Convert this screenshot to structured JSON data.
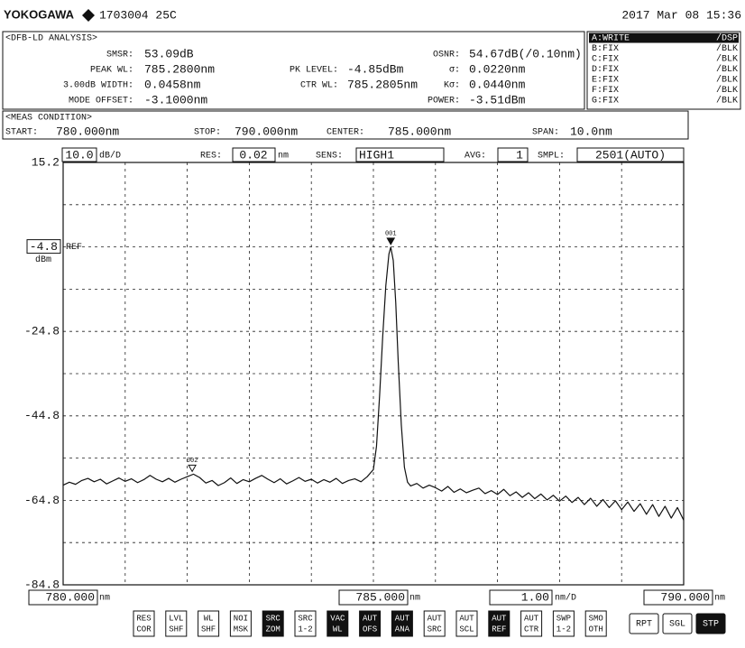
{
  "header": {
    "brand": "YOKOGAWA",
    "id": "1703004 25C",
    "datetime": "2017 Mar 08 15:36"
  },
  "analysis": {
    "title": "<DFB-LD ANALYSIS>",
    "columns": [
      [
        {
          "label": "SMSR:",
          "value": "53.09dB"
        },
        {
          "label": "PEAK WL:",
          "value": "785.2800nm"
        },
        {
          "label": "3.00dB WIDTH:",
          "value": "0.0458nm"
        },
        {
          "label": "MODE OFFSET:",
          "value": "-3.1000nm"
        }
      ],
      [
        {
          "label": "PK LEVEL:",
          "value": "-4.85dBm"
        },
        {
          "label": "CTR WL:",
          "value": "785.2805nm"
        }
      ],
      [
        {
          "label": "OSNR:",
          "value": "54.67dB(/0.10nm)"
        },
        {
          "label": "σ:",
          "value": "0.0220nm"
        },
        {
          "label": "Kσ:",
          "value": "0.0440nm"
        },
        {
          "label": "POWER:",
          "value": "-3.51dBm"
        }
      ]
    ]
  },
  "traces": [
    {
      "name": "A:WRITE",
      "mode": "/DSP",
      "active": true
    },
    {
      "name": "B:FIX",
      "mode": "/BLK",
      "active": false
    },
    {
      "name": "C:FIX",
      "mode": "/BLK",
      "active": false
    },
    {
      "name": "D:FIX",
      "mode": "/BLK",
      "active": false
    },
    {
      "name": "E:FIX",
      "mode": "/BLK",
      "active": false
    },
    {
      "name": "F:FIX",
      "mode": "/BLK",
      "active": false
    },
    {
      "name": "G:FIX",
      "mode": "/BLK",
      "active": false
    }
  ],
  "condition": {
    "title": "<MEAS CONDITION>",
    "items": [
      {
        "label": "START:",
        "value": "780.000nm"
      },
      {
        "label": "STOP:",
        "value": "790.000nm"
      },
      {
        "label": "CENTER:",
        "value": "785.000nm"
      },
      {
        "label": "SPAN:",
        "value": "10.0nm"
      }
    ]
  },
  "settings": {
    "scale": "10.0",
    "scale_unit": "dB/D",
    "res_label": "RES:",
    "res": "0.02",
    "res_unit": "nm",
    "sens_label": "SENS:",
    "sens": "HIGH1",
    "avg_label": "AVG:",
    "avg": "1",
    "smpl_label": "SMPL:",
    "smpl": "2501(AUTO)"
  },
  "chart_data": {
    "type": "line",
    "xlim": [
      780,
      790
    ],
    "ylim": [
      -84.8,
      15.2
    ],
    "xgrid": [
      780,
      781,
      782,
      783,
      784,
      785,
      786,
      787,
      788,
      789,
      790
    ],
    "ygrid": [
      15.2,
      5.2,
      -4.8,
      -14.8,
      -24.8,
      -34.8,
      -44.8,
      -54.8,
      -64.8,
      -74.8,
      -84.8
    ],
    "yticks": [
      15.2,
      -24.8,
      -44.8,
      -64.8,
      -84.8
    ],
    "xticks": [
      {
        "value": 780,
        "label": "780.000"
      },
      {
        "value": 785,
        "label": "785.000"
      },
      {
        "value": 790,
        "label": "790.000"
      }
    ],
    "x_unit": "nm",
    "x_per_div": "1.00",
    "x_per_div_unit": "nm/D",
    "ref_level": -4.8,
    "ref_label": "REF",
    "ref_unit": "dBm",
    "grid": true,
    "series": [
      {
        "name": "A",
        "color": "#111111",
        "x": [
          780.0,
          780.1,
          780.2,
          780.3,
          780.4,
          780.5,
          780.6,
          780.7,
          780.8,
          780.9,
          781.0,
          781.1,
          781.2,
          781.3,
          781.4,
          781.5,
          781.6,
          781.7,
          781.8,
          781.9,
          782.0,
          782.1,
          782.2,
          782.3,
          782.4,
          782.5,
          782.6,
          782.7,
          782.8,
          782.9,
          783.0,
          783.1,
          783.2,
          783.3,
          783.4,
          783.5,
          783.6,
          783.7,
          783.8,
          783.9,
          784.0,
          784.1,
          784.2,
          784.3,
          784.4,
          784.5,
          784.6,
          784.7,
          784.8,
          784.9,
          785.0,
          785.05,
          785.1,
          785.15,
          785.2,
          785.25,
          785.28,
          785.32,
          785.36,
          785.4,
          785.45,
          785.5,
          785.55,
          785.6,
          785.7,
          785.8,
          785.9,
          786.0,
          786.1,
          786.2,
          786.3,
          786.4,
          786.5,
          786.6,
          786.7,
          786.8,
          786.9,
          787.0,
          787.1,
          787.2,
          787.3,
          787.4,
          787.5,
          787.6,
          787.7,
          787.8,
          787.9,
          788.0,
          788.1,
          788.2,
          788.3,
          788.4,
          788.5,
          788.6,
          788.7,
          788.8,
          788.9,
          789.0,
          789.1,
          789.2,
          789.3,
          789.4,
          789.5,
          789.6,
          789.7,
          789.8,
          789.9,
          790.0
        ],
        "values": [
          -61.2,
          -60.5,
          -61.0,
          -60.1,
          -59.6,
          -60.4,
          -59.8,
          -60.9,
          -60.2,
          -59.5,
          -60.3,
          -59.7,
          -60.6,
          -59.9,
          -58.9,
          -59.8,
          -60.4,
          -59.6,
          -60.5,
          -59.8,
          -59.2,
          -58.6,
          -59.4,
          -60.7,
          -60.1,
          -61.3,
          -60.6,
          -59.5,
          -60.8,
          -59.9,
          -60.4,
          -59.6,
          -58.9,
          -59.8,
          -60.6,
          -59.7,
          -60.9,
          -60.2,
          -59.4,
          -60.3,
          -59.8,
          -60.7,
          -59.9,
          -60.5,
          -59.6,
          -60.8,
          -60.1,
          -59.7,
          -60.4,
          -59.2,
          -57.5,
          -52,
          -40,
          -26,
          -14,
          -6.5,
          -4.85,
          -8,
          -18,
          -32,
          -47,
          -57,
          -60.5,
          -61.4,
          -60.8,
          -61.9,
          -61.2,
          -61.8,
          -62.6,
          -61.5,
          -62.9,
          -62.1,
          -63.0,
          -62.4,
          -61.9,
          -63.2,
          -62.5,
          -63.4,
          -62.2,
          -63.7,
          -62.8,
          -64.1,
          -63.0,
          -64.4,
          -63.3,
          -64.7,
          -63.6,
          -65.0,
          -63.8,
          -65.3,
          -64.1,
          -65.8,
          -64.3,
          -66.2,
          -64.6,
          -66.5,
          -64.9,
          -67.0,
          -65.2,
          -67.4,
          -65.6,
          -68.1,
          -65.8,
          -68.6,
          -66.2,
          -69.0,
          -66.5,
          -69.5
        ]
      }
    ],
    "markers": [
      {
        "label": "001",
        "x": 785.28,
        "y": -4.85,
        "filled": true
      },
      {
        "label": "002",
        "x": 782.08,
        "y": -58.6,
        "filled": false
      }
    ]
  },
  "softkeys": [
    {
      "top": "RES",
      "bottom": "COR",
      "active": false
    },
    {
      "top": "LVL",
      "bottom": "SHF",
      "active": false
    },
    {
      "top": "WL",
      "bottom": "SHF",
      "active": false
    },
    {
      "top": "NOI",
      "bottom": "MSK",
      "active": false
    },
    {
      "top": "SRC",
      "bottom": "ZOM",
      "active": true
    },
    {
      "top": "SRC",
      "bottom": "1-2",
      "active": false
    },
    {
      "top": "VAC",
      "bottom": "WL",
      "active": true
    },
    {
      "top": "AUT",
      "bottom": "OFS",
      "active": true
    },
    {
      "top": "AUT",
      "bottom": "ANA",
      "active": true
    },
    {
      "top": "AUT",
      "bottom": "SRC",
      "active": false
    },
    {
      "top": "AUT",
      "bottom": "SCL",
      "active": false
    },
    {
      "top": "AUT",
      "bottom": "REF",
      "active": true
    },
    {
      "top": "AUT",
      "bottom": "CTR",
      "active": false
    },
    {
      "top": "SWP",
      "bottom": "1-2",
      "active": false
    },
    {
      "top": "SMO",
      "bottom": "OTH",
      "active": false
    }
  ],
  "run_keys": [
    {
      "label": "RPT",
      "active": false
    },
    {
      "label": "SGL",
      "active": false
    },
    {
      "label": "STP",
      "active": true
    }
  ]
}
